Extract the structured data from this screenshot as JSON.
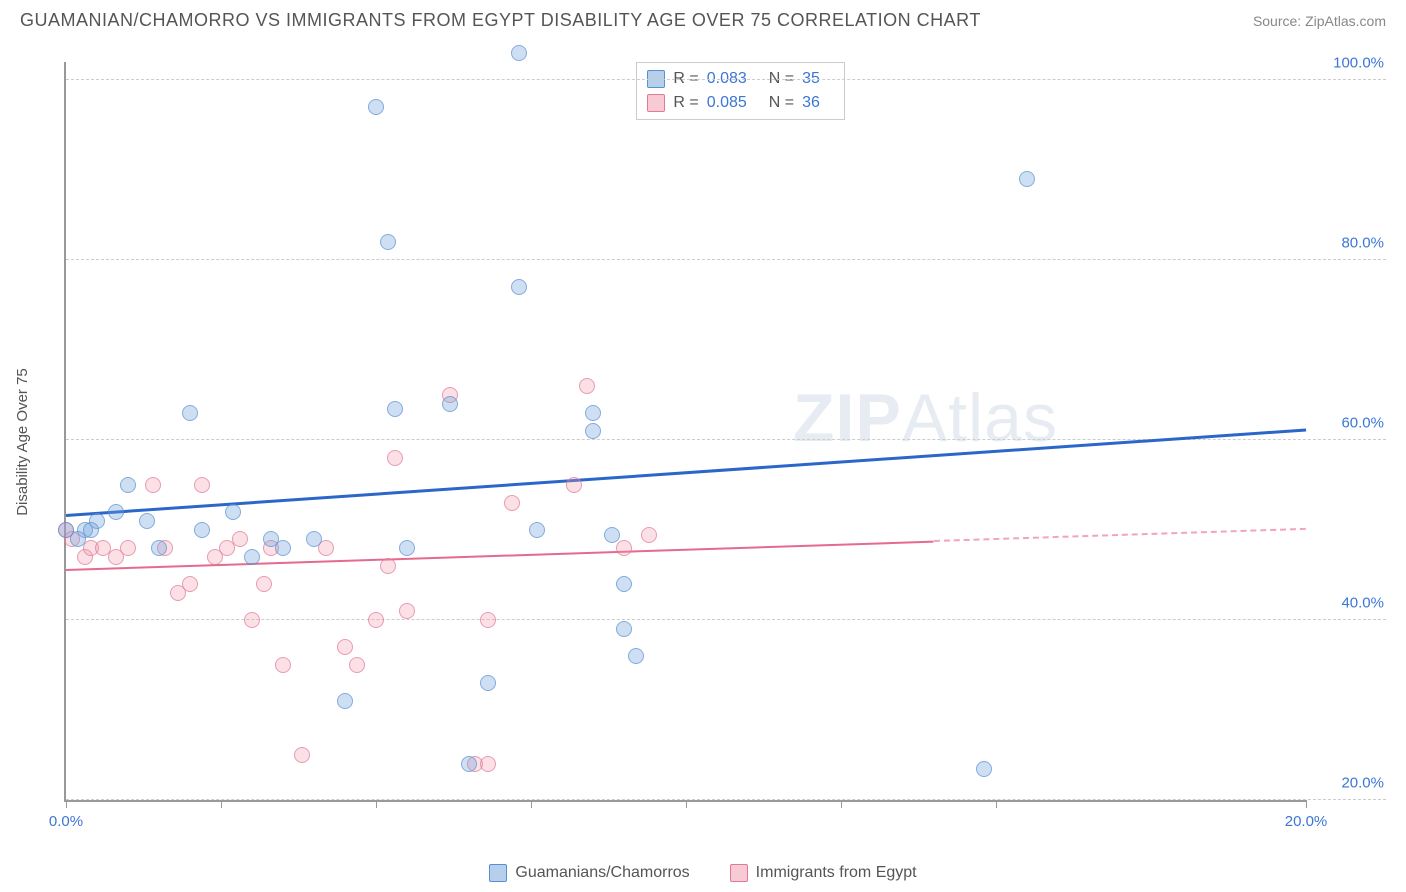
{
  "title": "GUAMANIAN/CHAMORRO VS IMMIGRANTS FROM EGYPT DISABILITY AGE OVER 75 CORRELATION CHART",
  "source": "Source: ZipAtlas.com",
  "yaxis_label": "Disability Age Over 75",
  "watermark": {
    "left": "ZIP",
    "right": "Atlas"
  },
  "chart": {
    "type": "scatter",
    "xlim": [
      0,
      20
    ],
    "ylim": [
      20,
      102
    ],
    "y_ticks": [
      20,
      40,
      60,
      80,
      100
    ],
    "y_tick_labels": [
      "20.0%",
      "40.0%",
      "60.0%",
      "80.0%",
      "100.0%"
    ],
    "x_ticks": [
      0,
      2.5,
      5,
      7.5,
      10,
      12.5,
      15,
      20
    ],
    "x_tick_labels_shown": {
      "0": "0.0%",
      "20": "20.0%"
    },
    "grid_color": "#cccccc",
    "axis_color": "#999999",
    "background_color": "#ffffff",
    "series": [
      {
        "name": "Guamanians/Chamorros",
        "color_fill": "rgba(110,160,220,0.45)",
        "color_stroke": "#5a8fd0",
        "regression": {
          "y_at_x0": 51.5,
          "y_at_x20": 61.0,
          "color": "#2b66c9",
          "width": 3,
          "solid_to_x": 20
        },
        "stats": {
          "R": "0.083",
          "N": "35"
        },
        "points": [
          [
            0.0,
            50
          ],
          [
            0.3,
            50
          ],
          [
            0.2,
            49
          ],
          [
            0.5,
            51
          ],
          [
            0.4,
            50
          ],
          [
            0.8,
            52
          ],
          [
            1.0,
            55
          ],
          [
            1.3,
            51
          ],
          [
            1.5,
            48
          ],
          [
            2.0,
            63
          ],
          [
            2.2,
            50
          ],
          [
            2.7,
            52
          ],
          [
            3.3,
            49
          ],
          [
            3.0,
            47
          ],
          [
            3.5,
            48
          ],
          [
            4.0,
            49
          ],
          [
            4.5,
            31
          ],
          [
            5.0,
            97
          ],
          [
            5.2,
            82
          ],
          [
            5.3,
            63.5
          ],
          [
            5.5,
            48
          ],
          [
            6.2,
            64
          ],
          [
            6.5,
            24
          ],
          [
            6.8,
            33
          ],
          [
            7.3,
            103
          ],
          [
            7.3,
            77
          ],
          [
            7.6,
            50
          ],
          [
            8.5,
            63
          ],
          [
            8.5,
            61
          ],
          [
            9.0,
            44
          ],
          [
            9.0,
            39
          ],
          [
            9.2,
            36
          ],
          [
            14.8,
            23.5
          ],
          [
            15.5,
            89
          ],
          [
            8.8,
            49.5
          ]
        ]
      },
      {
        "name": "Immigrants from Egypt",
        "color_fill": "rgba(240,150,170,0.4)",
        "color_stroke": "#e07a9a",
        "regression": {
          "y_at_x0": 45.5,
          "y_at_x20": 50.0,
          "color": "#e56a8d",
          "width": 2,
          "solid_to_x": 14
        },
        "stats": {
          "R": "0.085",
          "N": "36"
        },
        "points": [
          [
            0.0,
            50
          ],
          [
            0.1,
            49
          ],
          [
            0.3,
            47
          ],
          [
            0.4,
            48
          ],
          [
            0.6,
            48
          ],
          [
            0.8,
            47
          ],
          [
            1.0,
            48
          ],
          [
            1.4,
            55
          ],
          [
            1.6,
            48
          ],
          [
            2.0,
            44
          ],
          [
            2.2,
            55
          ],
          [
            2.4,
            47
          ],
          [
            2.6,
            48
          ],
          [
            3.0,
            40
          ],
          [
            3.2,
            44
          ],
          [
            3.3,
            48
          ],
          [
            3.5,
            35
          ],
          [
            3.8,
            25
          ],
          [
            4.2,
            48
          ],
          [
            4.5,
            37
          ],
          [
            4.7,
            35
          ],
          [
            5.0,
            40
          ],
          [
            5.2,
            46
          ],
          [
            5.3,
            58
          ],
          [
            5.5,
            41
          ],
          [
            6.2,
            65
          ],
          [
            6.6,
            24
          ],
          [
            6.8,
            24
          ],
          [
            6.8,
            40
          ],
          [
            7.2,
            53
          ],
          [
            8.2,
            55
          ],
          [
            8.4,
            66
          ],
          [
            9.0,
            48
          ],
          [
            9.4,
            49.5
          ],
          [
            2.8,
            49
          ],
          [
            1.8,
            43
          ]
        ]
      }
    ]
  },
  "legend_bottom": [
    {
      "swatch": "blue",
      "label": "Guamanians/Chamorros"
    },
    {
      "swatch": "pink",
      "label": "Immigrants from Egypt"
    }
  ],
  "stats_box": [
    {
      "swatch": "blue",
      "R": "0.083",
      "N": "35"
    },
    {
      "swatch": "pink",
      "R": "0.085",
      "N": "36"
    }
  ]
}
